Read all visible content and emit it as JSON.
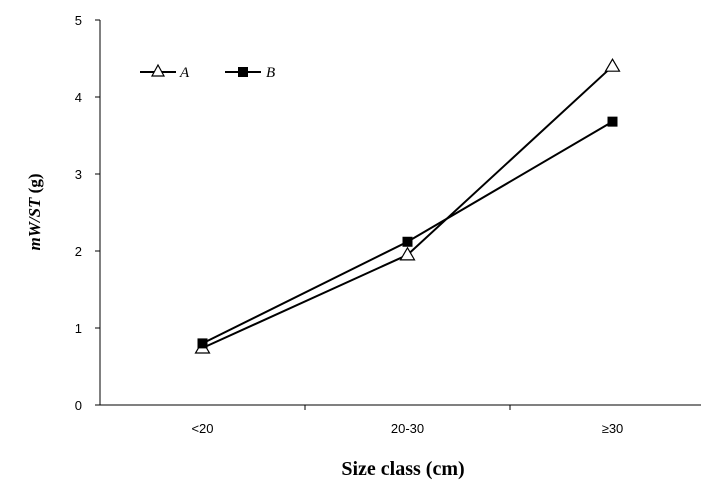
{
  "chart_data": {
    "type": "line",
    "categories": [
      "<20",
      "20-30",
      "≥30"
    ],
    "series": [
      {
        "name": "A",
        "marker": "open-triangle",
        "color": "#000000",
        "values": [
          0.74,
          1.95,
          4.4
        ]
      },
      {
        "name": "B",
        "marker": "filled-square",
        "color": "#000000",
        "values": [
          0.8,
          2.12,
          3.68
        ]
      }
    ],
    "title": "",
    "xlabel": "Size class (cm)",
    "ylabel_italic": "mW/ST",
    "ylabel_unit": " (g)",
    "ylim": [
      0,
      5
    ],
    "yticks": [
      "0",
      "1",
      "2",
      "3",
      "4",
      "5"
    ],
    "grid": false,
    "legend": "top-left"
  }
}
